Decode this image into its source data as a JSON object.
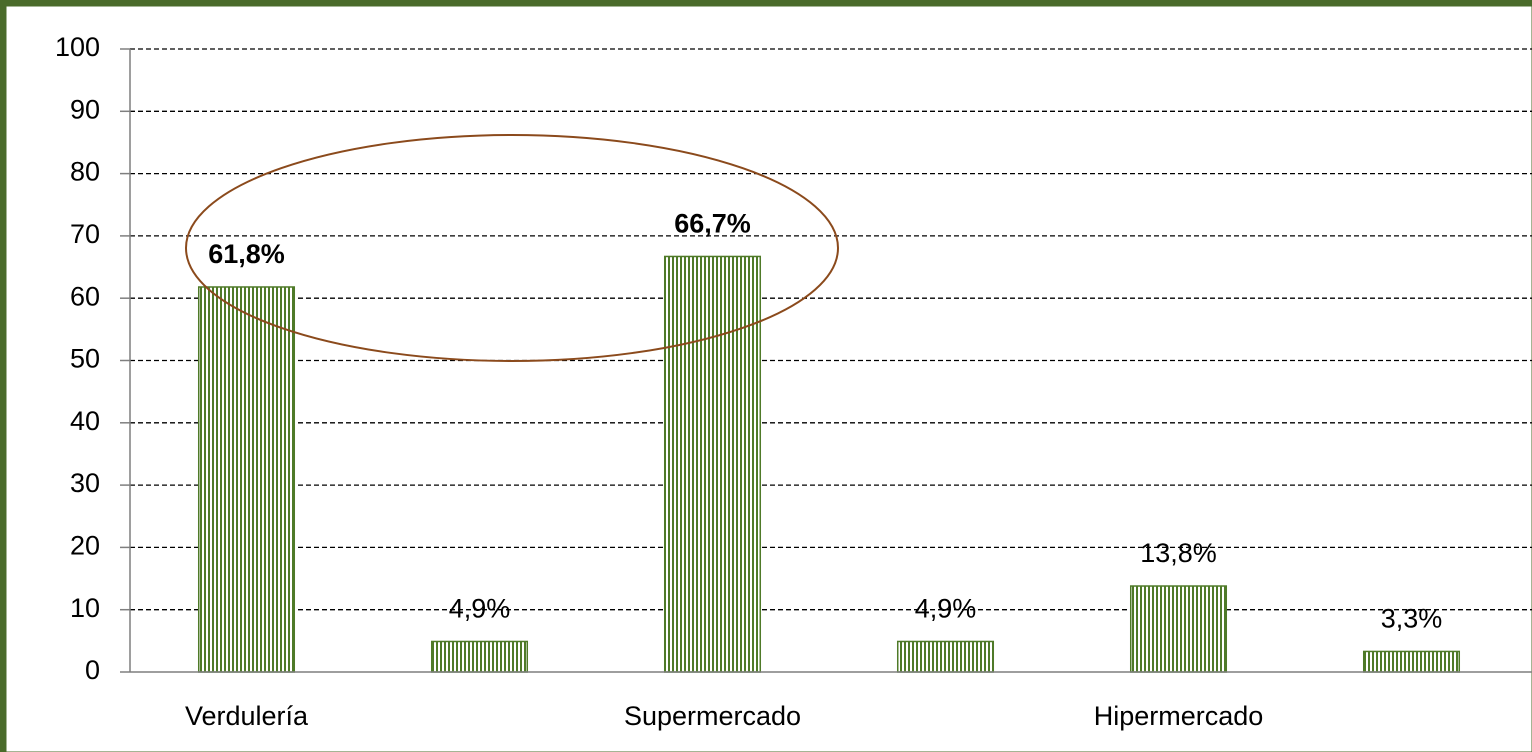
{
  "chart_data": {
    "type": "bar",
    "categories": [
      "Verdulería",
      null,
      "Supermercado",
      null,
      "Hipermercado",
      null
    ],
    "values": [
      61.8,
      4.9,
      66.7,
      4.9,
      13.8,
      3.3
    ],
    "value_labels": [
      "61,8%",
      "4,9%",
      "66,7%",
      "4,9%",
      "13,8%",
      "3,3%"
    ],
    "color": "#4f7a28",
    "ylim": [
      0,
      100
    ],
    "yticks": [
      0,
      10,
      20,
      30,
      40,
      50,
      60,
      70,
      80,
      90,
      100
    ],
    "grid": true
  }
}
